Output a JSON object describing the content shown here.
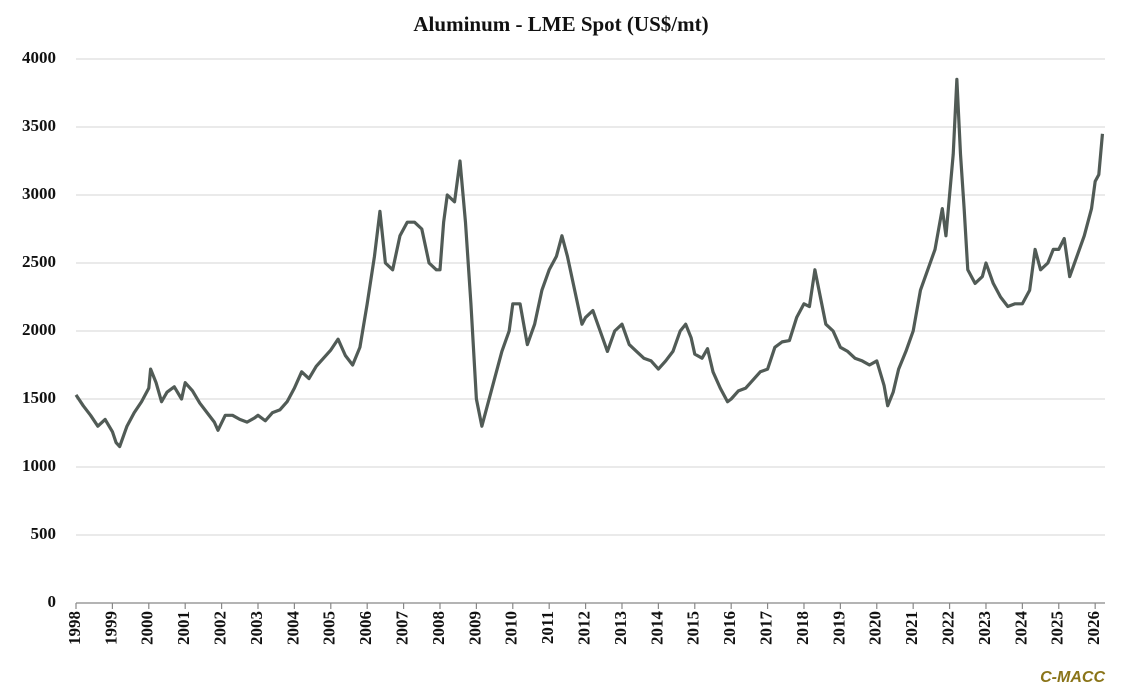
{
  "chart_data": {
    "type": "line",
    "title": "Aluminum  - LME Spot (US$/mt)",
    "source": "C-MACC",
    "x": [
      1998.0,
      1998.2,
      1998.4,
      1998.6,
      1998.8,
      1999.0,
      1999.1,
      1999.2,
      1999.4,
      1999.6,
      1999.8,
      2000.0,
      2000.05,
      2000.2,
      2000.35,
      2000.5,
      2000.7,
      2000.9,
      2001.0,
      2001.2,
      2001.4,
      2001.6,
      2001.8,
      2001.9,
      2002.1,
      2002.3,
      2002.5,
      2002.7,
      2002.9,
      2003.0,
      2003.2,
      2003.4,
      2003.6,
      2003.8,
      2004.0,
      2004.2,
      2004.4,
      2004.6,
      2004.8,
      2005.0,
      2005.2,
      2005.4,
      2005.6,
      2005.8,
      2006.0,
      2006.2,
      2006.35,
      2006.5,
      2006.7,
      2006.9,
      2007.1,
      2007.3,
      2007.5,
      2007.7,
      2007.9,
      2008.0,
      2008.1,
      2008.2,
      2008.4,
      2008.55,
      2008.7,
      2008.85,
      2009.0,
      2009.15,
      2009.3,
      2009.5,
      2009.7,
      2009.9,
      2010.0,
      2010.2,
      2010.4,
      2010.6,
      2010.8,
      2011.0,
      2011.2,
      2011.35,
      2011.5,
      2011.7,
      2011.9,
      2012.0,
      2012.2,
      2012.4,
      2012.6,
      2012.8,
      2013.0,
      2013.2,
      2013.4,
      2013.6,
      2013.8,
      2014.0,
      2014.2,
      2014.4,
      2014.6,
      2014.75,
      2014.9,
      2015.0,
      2015.2,
      2015.35,
      2015.5,
      2015.7,
      2015.9,
      2016.0,
      2016.2,
      2016.4,
      2016.6,
      2016.8,
      2017.0,
      2017.2,
      2017.4,
      2017.6,
      2017.8,
      2018.0,
      2018.15,
      2018.3,
      2018.45,
      2018.6,
      2018.8,
      2019.0,
      2019.2,
      2019.4,
      2019.6,
      2019.8,
      2020.0,
      2020.2,
      2020.3,
      2020.45,
      2020.6,
      2020.8,
      2021.0,
      2021.2,
      2021.4,
      2021.6,
      2021.8,
      2021.9,
      2022.0,
      2022.1,
      2022.2,
      2022.3,
      2022.4,
      2022.5,
      2022.7,
      2022.9,
      2023.0,
      2023.2,
      2023.4,
      2023.6,
      2023.8,
      2024.0,
      2024.2,
      2024.35,
      2024.5,
      2024.7,
      2024.85,
      2025.0,
      2025.15,
      2025.3,
      2025.5,
      2025.7,
      2025.9,
      2026.0,
      2026.1,
      2026.2
    ],
    "series": [
      {
        "name": "LME Spot",
        "color": "#515b56",
        "values": [
          1530,
          1450,
          1380,
          1300,
          1350,
          1260,
          1180,
          1150,
          1300,
          1400,
          1480,
          1580,
          1720,
          1620,
          1480,
          1550,
          1590,
          1500,
          1620,
          1560,
          1470,
          1400,
          1330,
          1270,
          1380,
          1380,
          1350,
          1330,
          1360,
          1380,
          1340,
          1400,
          1420,
          1480,
          1580,
          1700,
          1650,
          1740,
          1800,
          1860,
          1940,
          1820,
          1750,
          1880,
          2200,
          2550,
          2880,
          2500,
          2450,
          2700,
          2800,
          2800,
          2750,
          2500,
          2450,
          2450,
          2800,
          3000,
          2950,
          3250,
          2800,
          2200,
          1500,
          1300,
          1450,
          1650,
          1850,
          2000,
          2200,
          2200,
          1900,
          2050,
          2300,
          2450,
          2550,
          2700,
          2550,
          2300,
          2050,
          2100,
          2150,
          2000,
          1850,
          2000,
          2050,
          1900,
          1850,
          1800,
          1780,
          1720,
          1780,
          1850,
          2000,
          2050,
          1950,
          1830,
          1800,
          1870,
          1700,
          1580,
          1480,
          1500,
          1560,
          1580,
          1640,
          1700,
          1720,
          1880,
          1920,
          1930,
          2100,
          2200,
          2180,
          2450,
          2250,
          2050,
          2000,
          1880,
          1850,
          1800,
          1780,
          1750,
          1780,
          1600,
          1450,
          1550,
          1720,
          1850,
          2000,
          2300,
          2450,
          2600,
          2900,
          2700,
          3000,
          3300,
          3850,
          3300,
          2900,
          2450,
          2350,
          2400,
          2500,
          2350,
          2250,
          2180,
          2200,
          2200,
          2300,
          2600,
          2450,
          2500,
          2600,
          2600,
          2680,
          2400,
          2550,
          2700,
          2900,
          3100,
          3150,
          3450
        ]
      }
    ],
    "xlim": [
      1998,
      2026.27
    ],
    "xticks": [
      1998,
      1999,
      2000,
      2001,
      2002,
      2003,
      2004,
      2005,
      2006,
      2007,
      2008,
      2009,
      2010,
      2011,
      2012,
      2013,
      2014,
      2015,
      2016,
      2017,
      2018,
      2019,
      2020,
      2021,
      2022,
      2023,
      2024,
      2025,
      2026
    ],
    "ylim": [
      0,
      4000
    ],
    "yticks": [
      0,
      500,
      1000,
      1500,
      2000,
      2500,
      3000,
      3500,
      4000
    ],
    "grid": true
  }
}
